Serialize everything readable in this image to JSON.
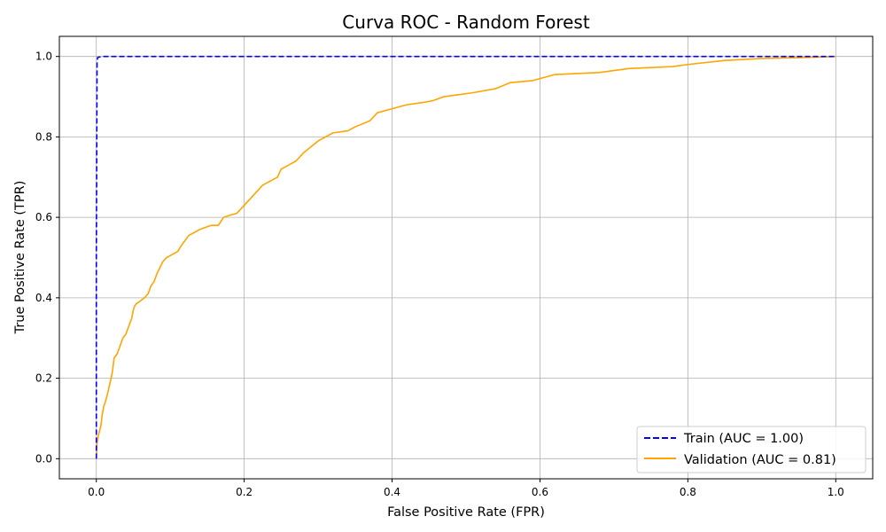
{
  "chart_data": {
    "type": "line",
    "title": "Curva ROC - Random Forest",
    "xlabel": "False Positive Rate (FPR)",
    "ylabel": "True Positive Rate (TPR)",
    "xlim": [
      -0.05,
      1.05
    ],
    "ylim": [
      -0.05,
      1.05
    ],
    "x_ticks": [
      0.0,
      0.2,
      0.4,
      0.6,
      0.8,
      1.0
    ],
    "x_tick_labels": [
      "0.0",
      "0.2",
      "0.4",
      "0.6",
      "0.8",
      "1.0"
    ],
    "y_ticks": [
      0.0,
      0.2,
      0.4,
      0.6,
      0.8,
      1.0
    ],
    "y_tick_labels": [
      "0.0",
      "0.2",
      "0.4",
      "0.6",
      "0.8",
      "1.0"
    ],
    "grid": true,
    "legend_position": "bottom-right",
    "series": [
      {
        "name": "Train (AUC = 1.00)",
        "color": "#0000ff",
        "style": "dashed",
        "x": [
          0.0,
          0.0,
          0.001,
          0.002,
          0.01,
          1.0
        ],
        "y": [
          0.0,
          0.5,
          0.99,
          0.998,
          1.0,
          1.0
        ]
      },
      {
        "name": "Validation (AUC = 0.81)",
        "color": "#ffa500",
        "style": "solid",
        "x": [
          0.0,
          0.001,
          0.003,
          0.006,
          0.008,
          0.01,
          0.012,
          0.015,
          0.02,
          0.022,
          0.024,
          0.028,
          0.03,
          0.034,
          0.036,
          0.04,
          0.044,
          0.048,
          0.05,
          0.052,
          0.054,
          0.058,
          0.065,
          0.07,
          0.074,
          0.078,
          0.082,
          0.09,
          0.095,
          0.105,
          0.11,
          0.115,
          0.125,
          0.13,
          0.14,
          0.155,
          0.165,
          0.172,
          0.18,
          0.19,
          0.2,
          0.215,
          0.225,
          0.245,
          0.25,
          0.26,
          0.27,
          0.28,
          0.3,
          0.32,
          0.34,
          0.35,
          0.37,
          0.38,
          0.4,
          0.42,
          0.44,
          0.455,
          0.47,
          0.49,
          0.51,
          0.54,
          0.56,
          0.59,
          0.62,
          0.68,
          0.7,
          0.72,
          0.78,
          0.8,
          0.85,
          0.9,
          0.95,
          1.0
        ],
        "y": [
          0.0,
          0.04,
          0.06,
          0.08,
          0.11,
          0.13,
          0.14,
          0.16,
          0.2,
          0.22,
          0.25,
          0.26,
          0.27,
          0.29,
          0.3,
          0.31,
          0.33,
          0.35,
          0.37,
          0.38,
          0.385,
          0.39,
          0.4,
          0.41,
          0.43,
          0.44,
          0.46,
          0.49,
          0.5,
          0.51,
          0.515,
          0.53,
          0.555,
          0.56,
          0.57,
          0.58,
          0.58,
          0.6,
          0.605,
          0.61,
          0.63,
          0.66,
          0.68,
          0.7,
          0.72,
          0.73,
          0.74,
          0.76,
          0.79,
          0.81,
          0.815,
          0.825,
          0.84,
          0.86,
          0.87,
          0.88,
          0.885,
          0.89,
          0.9,
          0.905,
          0.91,
          0.92,
          0.935,
          0.94,
          0.955,
          0.96,
          0.965,
          0.97,
          0.975,
          0.98,
          0.99,
          0.995,
          0.997,
          1.0
        ]
      }
    ]
  }
}
